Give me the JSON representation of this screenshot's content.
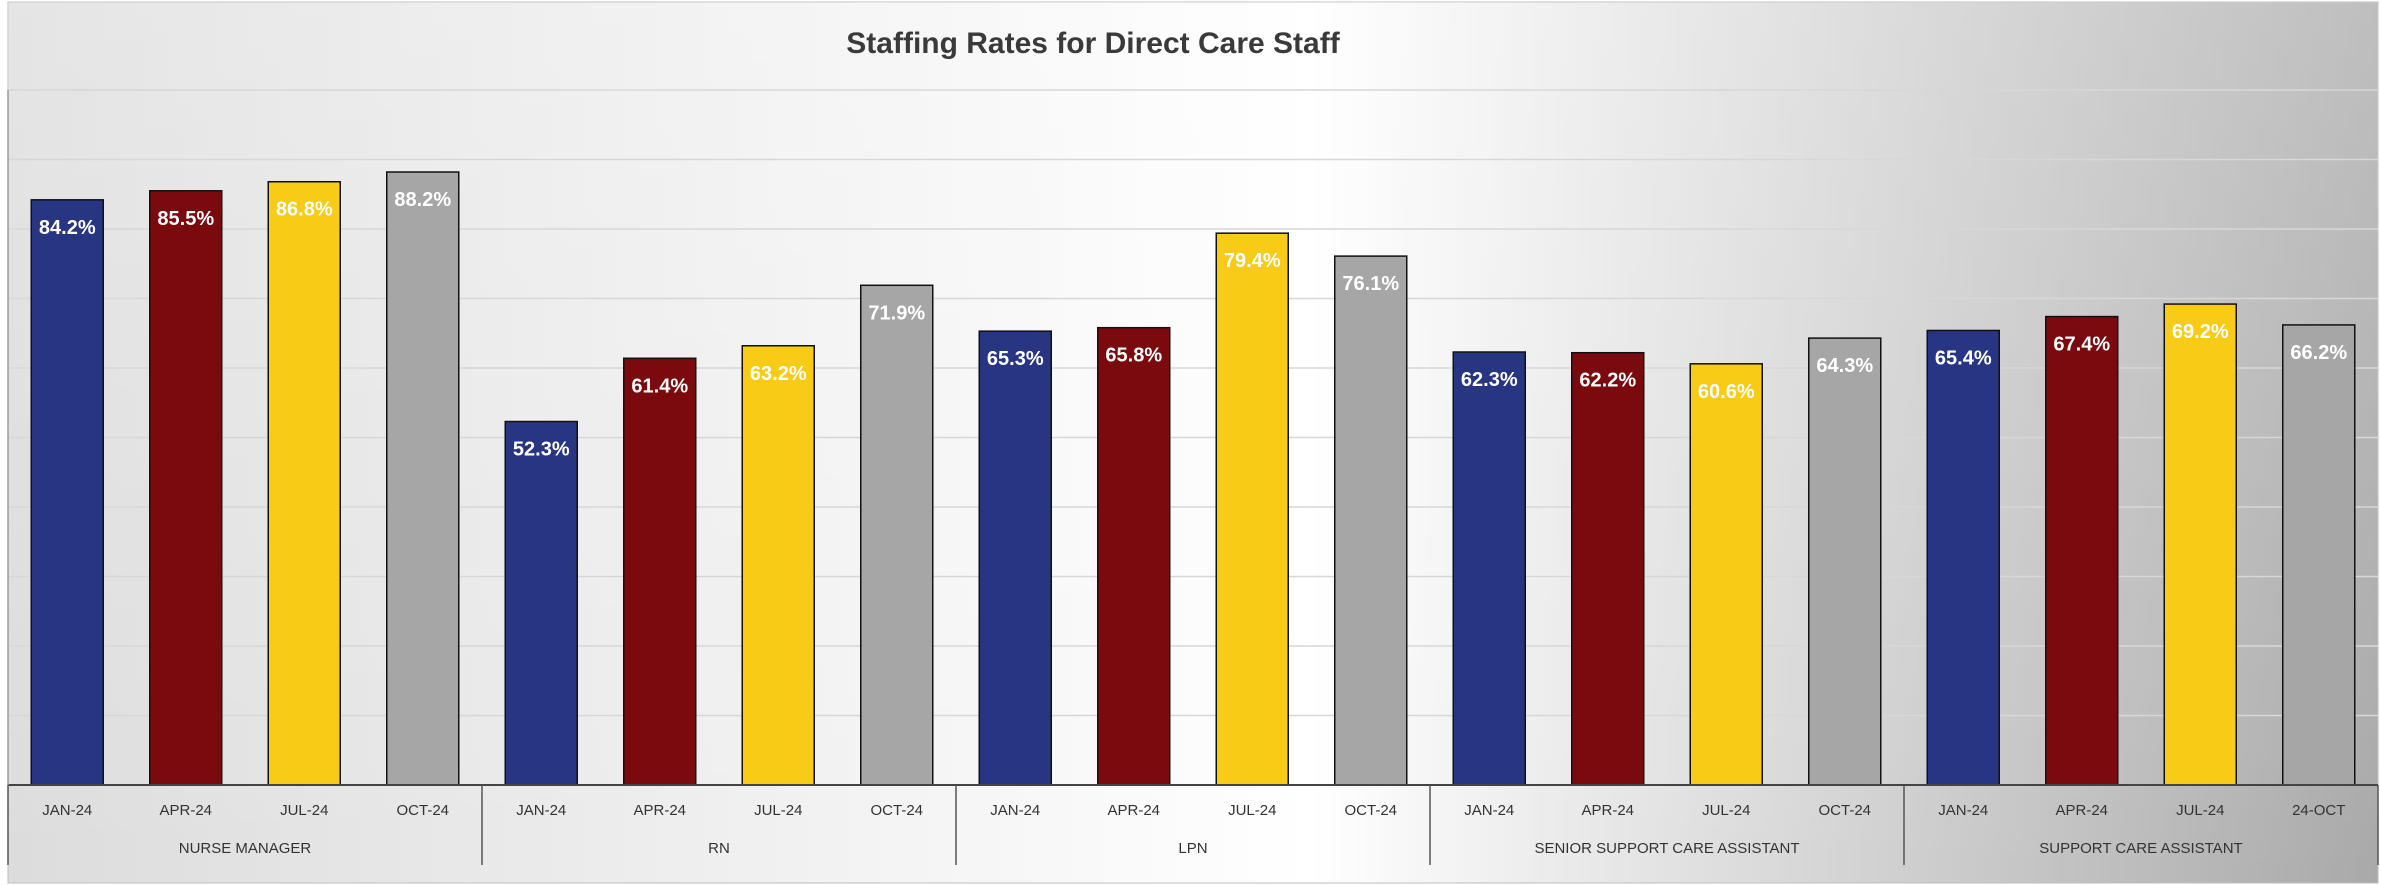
{
  "chart_data": {
    "type": "bar",
    "title": "Staffing Rates for Direct Care Staff",
    "xlabel": "",
    "ylabel": "",
    "ylim": [
      0,
      100
    ],
    "grid": true,
    "legend": "none",
    "groups": [
      {
        "name": "NURSE MANAGER",
        "categories": [
          "JAN-24",
          "APR-24",
          "JUL-24",
          "OCT-24"
        ],
        "values": [
          84.2,
          85.5,
          86.8,
          88.2
        ],
        "labels": [
          "84.2%",
          "85.5%",
          "86.8%",
          "88.2%"
        ]
      },
      {
        "name": "RN",
        "categories": [
          "JAN-24",
          "APR-24",
          "JUL-24",
          "OCT-24"
        ],
        "values": [
          52.3,
          61.4,
          63.2,
          71.9
        ],
        "labels": [
          "52.3%",
          "61.4%",
          "63.2%",
          "71.9%"
        ]
      },
      {
        "name": "LPN",
        "categories": [
          "JAN-24",
          "APR-24",
          "JUL-24",
          "OCT-24"
        ],
        "values": [
          65.3,
          65.8,
          79.4,
          76.1
        ],
        "labels": [
          "65.3%",
          "65.8%",
          "79.4%",
          "76.1%"
        ]
      },
      {
        "name": "SENIOR SUPPORT CARE ASSISTANT",
        "categories": [
          "JAN-24",
          "APR-24",
          "JUL-24",
          "OCT-24"
        ],
        "values": [
          62.3,
          62.2,
          60.6,
          64.3
        ],
        "labels": [
          "62.3%",
          "62.2%",
          "60.6%",
          "64.3%"
        ]
      },
      {
        "name": "SUPPORT CARE ASSISTANT",
        "categories": [
          "JAN-24",
          "APR-24",
          "JUL-24",
          "24-OCT"
        ],
        "values": [
          65.4,
          67.4,
          69.2,
          66.2
        ],
        "labels": [
          "65.4%",
          "67.4%",
          "69.2%",
          "66.2%"
        ]
      }
    ],
    "colors": [
      "#283583",
      "#7b0a0e",
      "#f7cb16",
      "#a6a6a6"
    ]
  }
}
